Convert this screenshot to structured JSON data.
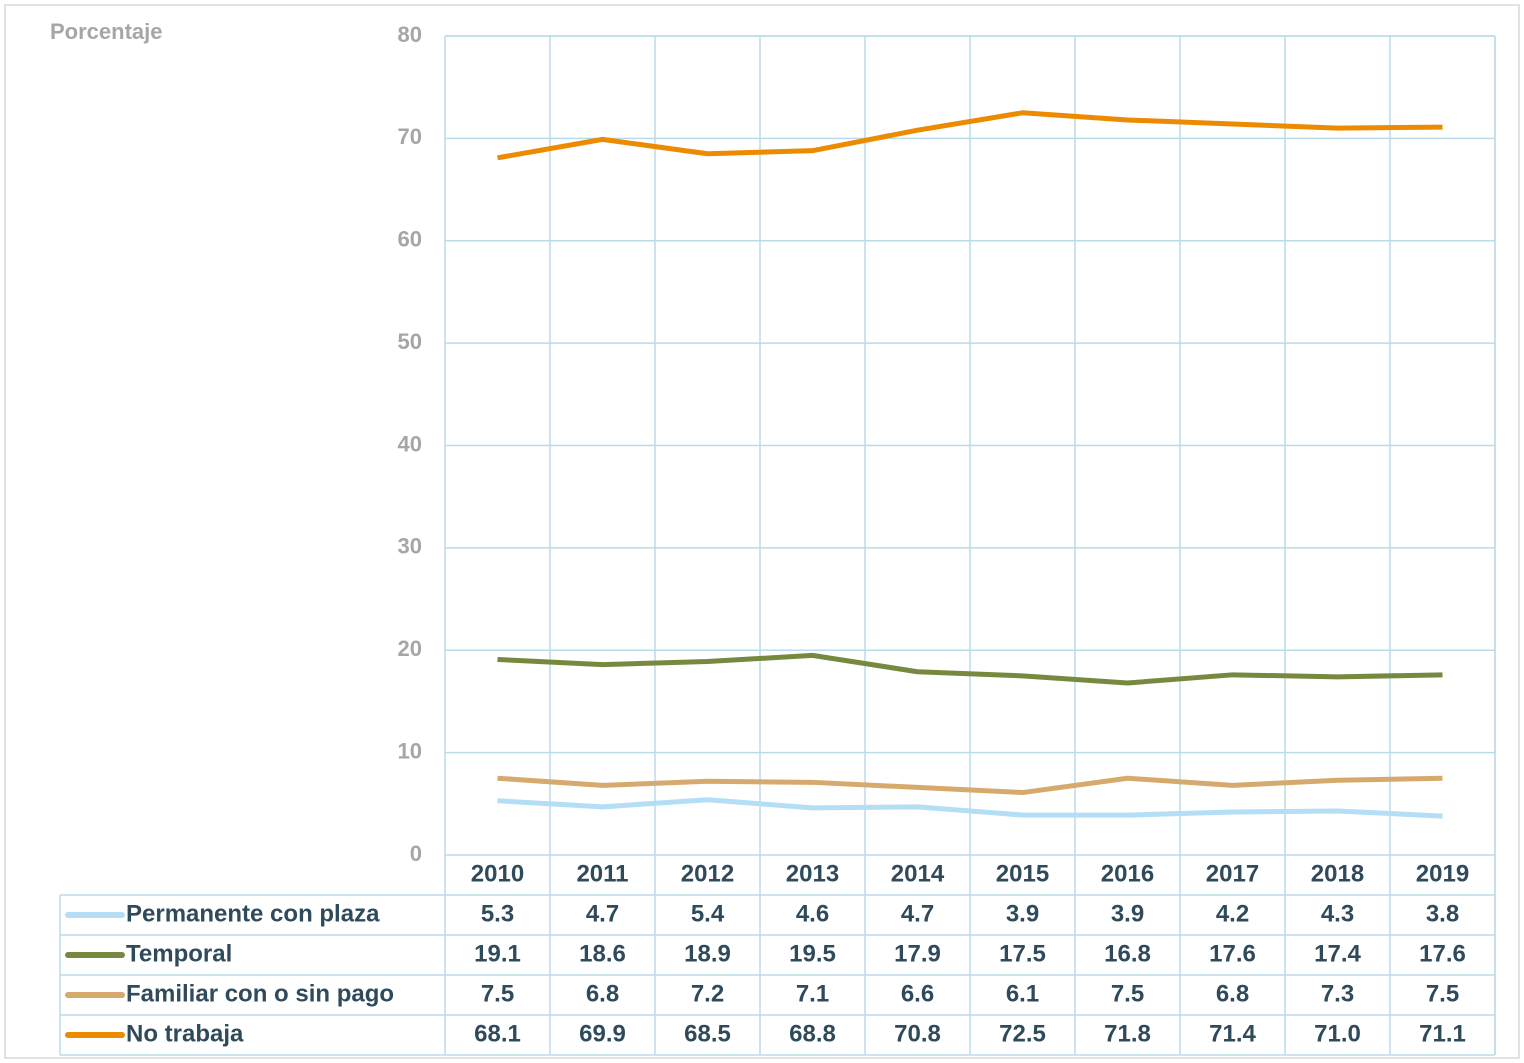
{
  "chart_data": {
    "type": "line",
    "y_label": "Porcentaje",
    "categories": [
      "2010",
      "2011",
      "2012",
      "2013",
      "2014",
      "2015",
      "2016",
      "2017",
      "2018",
      "2019"
    ],
    "ylim": [
      0,
      80
    ],
    "yticks": [
      0,
      10,
      20,
      30,
      40,
      50,
      60,
      70,
      80
    ],
    "grid": true,
    "series": [
      {
        "name": "Permanente con plaza",
        "color": "#b3def5",
        "values": [
          5.3,
          4.7,
          5.4,
          4.6,
          4.7,
          3.9,
          3.9,
          4.2,
          4.3,
          3.8
        ]
      },
      {
        "name": "Temporal",
        "color": "#77893f",
        "values": [
          19.1,
          18.6,
          18.9,
          19.5,
          17.9,
          17.5,
          16.8,
          17.6,
          17.4,
          17.6
        ]
      },
      {
        "name": "Familiar con o sin pago",
        "color": "#d5aa6c",
        "values": [
          7.5,
          6.8,
          7.2,
          7.1,
          6.6,
          6.1,
          7.5,
          6.8,
          7.3,
          7.5
        ]
      },
      {
        "name": "No trabaja",
        "color": "#ec8a00",
        "values": [
          68.1,
          69.9,
          68.5,
          68.8,
          70.8,
          72.5,
          71.8,
          71.4,
          71.0,
          71.1
        ],
        "value_labels": [
          "68.1",
          "69.9",
          "68.5",
          "68.8",
          "70.8",
          "72.5",
          "71.8",
          "71.4",
          "71.0",
          "71.1"
        ]
      }
    ]
  }
}
